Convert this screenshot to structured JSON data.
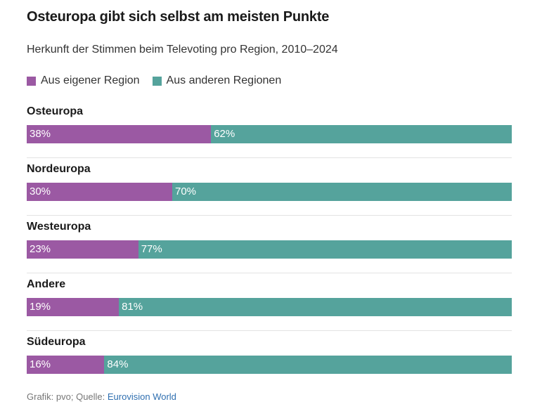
{
  "title": "Osteuropa gibt sich selbst am meisten Punkte",
  "subtitle": "Herkunft der Stimmen beim Televoting pro Region, 2010–2024",
  "colors": {
    "own": "#9b59a3",
    "other": "#55a39c"
  },
  "chart_data": {
    "type": "bar",
    "orientation": "horizontal-stacked-100",
    "title": "Osteuropa gibt sich selbst am meisten Punkte",
    "subtitle": "Herkunft der Stimmen beim Televoting pro Region, 2010–2024",
    "categories": [
      "Osteuropa",
      "Nordeuropa",
      "Westeuropa",
      "Andere",
      "Südeuropa"
    ],
    "series": [
      {
        "name": "Aus eigener Region",
        "values": [
          38,
          30,
          23,
          19,
          16
        ],
        "labels": [
          "38%",
          "30%",
          "23%",
          "19%",
          "16%"
        ]
      },
      {
        "name": "Aus anderen Regionen",
        "values": [
          62,
          70,
          77,
          81,
          84
        ],
        "labels": [
          "62%",
          "70%",
          "77%",
          "81%",
          "84%"
        ]
      }
    ],
    "legend": "top-left",
    "unit": "%"
  },
  "source": {
    "prefix": "Grafik: pvo; Quelle: ",
    "link_text": "Eurovision World"
  }
}
